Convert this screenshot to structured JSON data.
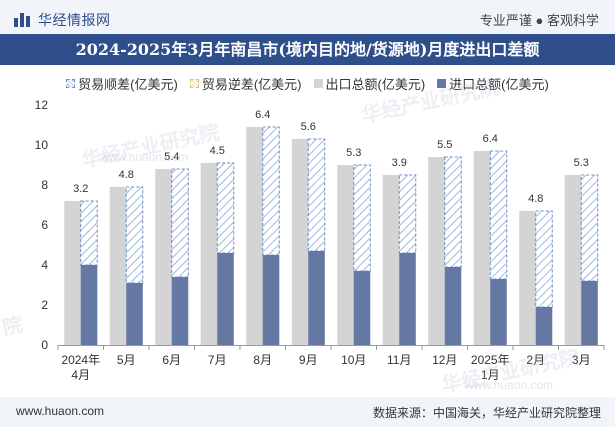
{
  "header": {
    "brand": "华经情报网",
    "slogan": "专业严谨 ● 客观科学"
  },
  "watermark": {
    "text": "华经产业研究院",
    "url": "www.huaon.com",
    "short": "院"
  },
  "footer": {
    "site": "www.huaon.com",
    "source": "数据来源：中国海关，华经产业研究院整理"
  },
  "colors": {
    "title_bg": "#2f4e8c",
    "total_bar": "#d4d4d4",
    "import_bar": "#6577a3",
    "surplus_hatch": "#6a8fc8"
  },
  "chart_data": {
    "type": "bar",
    "title": "2024-2025年3月年南昌市(境内目的地/货源地)月度进出口差额",
    "categories": [
      [
        "2024年",
        "4月"
      ],
      [
        "5月"
      ],
      [
        "6月"
      ],
      [
        "7月"
      ],
      [
        "8月"
      ],
      [
        "9月"
      ],
      [
        "10月"
      ],
      [
        "11月"
      ],
      [
        "12月"
      ],
      [
        "2025年",
        "1月"
      ],
      [
        "2月"
      ],
      [
        "3月"
      ]
    ],
    "series": [
      {
        "name": "贸易顺差(亿美元)",
        "values": [
          3.2,
          4.8,
          5.4,
          4.5,
          6.4,
          5.6,
          5.3,
          3.9,
          5.5,
          6.4,
          4.8,
          5.3
        ]
      },
      {
        "name": "贸易逆差(亿美元)",
        "values": [
          0,
          0,
          0,
          0,
          0,
          0,
          0,
          0,
          0,
          0,
          0,
          0
        ]
      },
      {
        "name": "出口总额(亿美元)",
        "values": [
          7.2,
          7.9,
          8.8,
          9.1,
          10.9,
          10.3,
          9.0,
          8.5,
          9.4,
          9.7,
          6.7,
          8.5
        ]
      },
      {
        "name": "进口总额(亿美元)",
        "values": [
          4.0,
          3.1,
          3.4,
          4.6,
          4.5,
          4.7,
          3.7,
          4.6,
          3.9,
          3.3,
          1.9,
          3.2
        ]
      }
    ],
    "ylim": [
      0,
      12
    ],
    "yticks": [
      0,
      2,
      4,
      6,
      8,
      10,
      12
    ],
    "legend_position": "top-center",
    "xlabel": "",
    "ylabel": ""
  }
}
